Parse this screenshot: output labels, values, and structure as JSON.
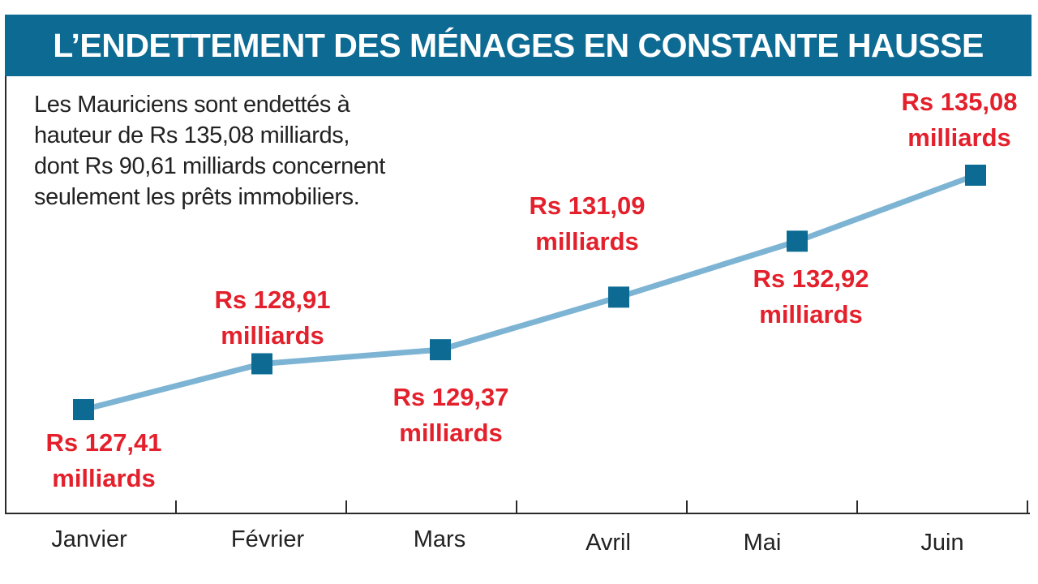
{
  "title": "L’ENDETTEMENT DES MÉNAGES EN CONSTANTE HAUSSE",
  "intro": [
    "Les Mauriciens sont endettés à",
    "hauteur de Rs 135,08 milliards,",
    "dont Rs 90,61 milliards concernent",
    "seulement les prêts immobiliers."
  ],
  "colors": {
    "title_bg": "#0d6b93",
    "line": "#7db4d4",
    "marker": "#0d6b93",
    "label": "#e3202b",
    "axis": "#2a2a2a"
  },
  "chart_data": {
    "type": "line",
    "title": "L’ENDETTEMENT DES MÉNAGES EN CONSTANTE HAUSSE",
    "xlabel": "",
    "ylabel": "",
    "categories": [
      "Janvier",
      "Février",
      "Mars",
      "Avril",
      "Mai",
      "Juin"
    ],
    "values": [
      127.41,
      128.91,
      129.37,
      131.09,
      132.92,
      135.08
    ],
    "unit": "Rs milliards",
    "labels": [
      {
        "value": "Rs 127,41",
        "unit": "milliards",
        "placement": "below"
      },
      {
        "value": "Rs 128,91",
        "unit": "milliards",
        "placement": "above"
      },
      {
        "value": "Rs 129,37",
        "unit": "milliards",
        "placement": "below"
      },
      {
        "value": "Rs 131,09",
        "unit": "milliards",
        "placement": "above"
      },
      {
        "value": "Rs 132,92",
        "unit": "milliards",
        "placement": "below"
      },
      {
        "value": "Rs 135,08",
        "unit": "milliards",
        "placement": "above"
      }
    ],
    "grid": false,
    "legend": "none"
  }
}
